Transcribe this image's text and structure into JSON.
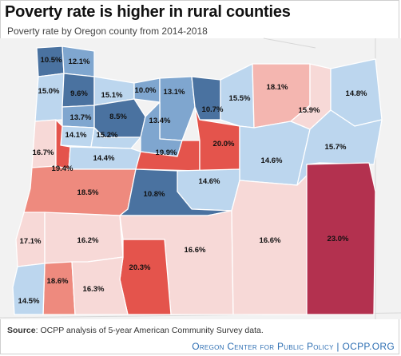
{
  "title": "Poverty rate is higher in rural counties",
  "subtitle": "Poverty rate by Oregon county from 2014-2018",
  "source": {
    "label": "Source",
    "text": ": OCPP analysis of 5-year American Community Survey data."
  },
  "footer": {
    "org": "Oregon Center for Public Policy",
    "sep": " | ",
    "site": "OCPP.ORG"
  },
  "colors": {
    "dark_blue": "#4a72a0",
    "mid_blue": "#7fa6cf",
    "light_blue": "#bcd6ee",
    "very_light_pink": "#f7d9d7",
    "light_pink": "#f4b6b0",
    "salmon": "#ee8a7e",
    "red": "#e4544c",
    "crimson": "#b3314f",
    "background": "#f2f2f2"
  },
  "counties": [
    {
      "value": "10.5%",
      "color": "dark_blue"
    },
    {
      "value": "12.1%",
      "color": "mid_blue"
    },
    {
      "value": "15.0%",
      "color": "light_blue"
    },
    {
      "value": "9.6%",
      "color": "dark_blue"
    },
    {
      "value": "15.1%",
      "color": "light_blue"
    },
    {
      "value": "10.0%",
      "color": "mid_blue"
    },
    {
      "value": "13.1%",
      "color": "mid_blue"
    },
    {
      "value": "13.7%",
      "color": "mid_blue"
    },
    {
      "value": "8.5%",
      "color": "dark_blue"
    },
    {
      "value": "10.7%",
      "color": "dark_blue"
    },
    {
      "value": "15.5%",
      "color": "light_blue"
    },
    {
      "value": "18.1%",
      "color": "light_pink"
    },
    {
      "value": "15.9%",
      "color": "very_light_pink"
    },
    {
      "value": "14.8%",
      "color": "light_blue"
    },
    {
      "value": "14.1%",
      "color": "light_blue"
    },
    {
      "value": "15.2%",
      "color": "light_blue"
    },
    {
      "value": "13.4%",
      "color": "mid_blue"
    },
    {
      "value": "16.7%",
      "color": "very_light_pink"
    },
    {
      "value": "19.4%",
      "color": "red"
    },
    {
      "value": "14.4%",
      "color": "light_blue"
    },
    {
      "value": "19.9%",
      "color": "red"
    },
    {
      "value": "20.0%",
      "color": "red"
    },
    {
      "value": "14.6%",
      "color": "light_blue"
    },
    {
      "value": "15.7%",
      "color": "light_blue"
    },
    {
      "value": "14.6%",
      "color": "light_blue"
    },
    {
      "value": "18.5%",
      "color": "salmon"
    },
    {
      "value": "10.8%",
      "color": "dark_blue"
    },
    {
      "value": "17.1%",
      "color": "very_light_pink"
    },
    {
      "value": "16.2%",
      "color": "very_light_pink"
    },
    {
      "value": "16.6%",
      "color": "very_light_pink"
    },
    {
      "value": "16.6%",
      "color": "very_light_pink"
    },
    {
      "value": "23.0%",
      "color": "crimson"
    },
    {
      "value": "20.3%",
      "color": "red"
    },
    {
      "value": "18.6%",
      "color": "salmon"
    },
    {
      "value": "16.3%",
      "color": "very_light_pink"
    },
    {
      "value": "14.5%",
      "color": "light_blue"
    }
  ]
}
